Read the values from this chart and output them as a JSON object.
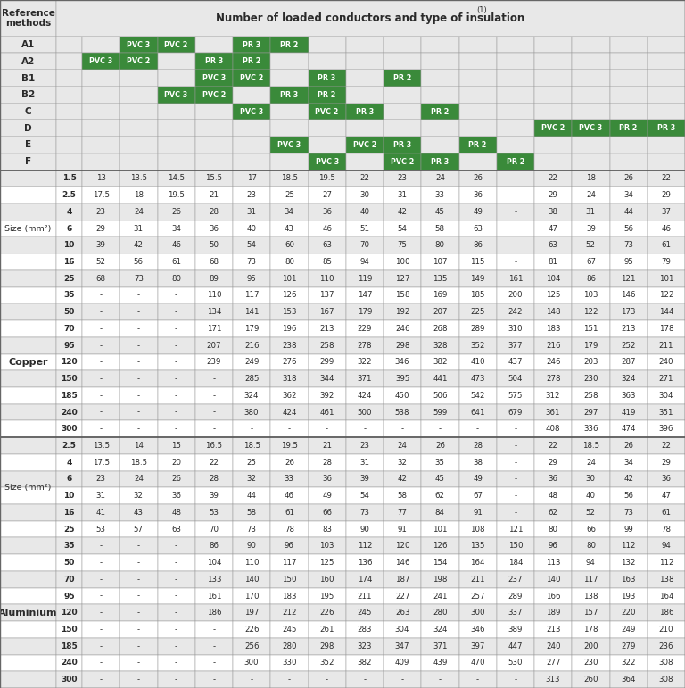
{
  "title": "Number of loaded conductors and type of insulation",
  "title_sup": "(1)",
  "green_color": "#3a8a3a",
  "light_gray": "#e8e8e8",
  "mid_gray": "#d0d0d0",
  "white": "#ffffff",
  "dark": "#2a2a2a",
  "header_rows": [
    {
      "label": "A1",
      "cells": [
        "",
        "PVC 3",
        "PVC 2",
        "",
        "PR 3",
        "PR 2",
        "",
        "",
        "",
        "",
        "",
        "",
        "",
        "",
        "",
        ""
      ]
    },
    {
      "label": "A2",
      "cells": [
        "PVC 3",
        "PVC 2",
        "",
        "PR 3",
        "PR 2",
        "",
        "",
        "",
        "",
        "",
        "",
        "",
        "",
        "",
        "",
        ""
      ]
    },
    {
      "label": "B1",
      "cells": [
        "",
        "",
        "",
        "PVC 3",
        "PVC 2",
        "",
        "PR 3",
        "",
        "PR 2",
        "",
        "",
        "",
        "",
        "",
        "",
        ""
      ]
    },
    {
      "label": "B2",
      "cells": [
        "",
        "",
        "PVC 3",
        "PVC 2",
        "",
        "PR 3",
        "PR 2",
        "",
        "",
        "",
        "",
        "",
        "",
        "",
        "",
        ""
      ]
    },
    {
      "label": "C",
      "cells": [
        "",
        "",
        "",
        "",
        "PVC 3",
        "",
        "PVC 2",
        "PR 3",
        "",
        "PR 2",
        "",
        "",
        "",
        "",
        "",
        ""
      ]
    },
    {
      "label": "D",
      "cells": [
        "",
        "",
        "",
        "",
        "",
        "",
        "",
        "",
        "",
        "",
        "",
        "",
        "PVC 2",
        "PVC 3",
        "PR 2",
        "PR 3"
      ]
    },
    {
      "label": "E",
      "cells": [
        "",
        "",
        "",
        "",
        "",
        "PVC 3",
        "",
        "PVC 2",
        "PR 3",
        "",
        "PR 2",
        "",
        "",
        "",
        "",
        ""
      ]
    },
    {
      "label": "F",
      "cells": [
        "",
        "",
        "",
        "",
        "",
        "",
        "PVC 3",
        "",
        "PVC 2",
        "PR 3",
        "",
        "PR 2",
        "",
        "",
        "",
        ""
      ]
    }
  ],
  "copper_rows": [
    {
      "size": "1.5",
      "vals": [
        "13",
        "13.5",
        "14.5",
        "15.5",
        "17",
        "18.5",
        "19.5",
        "22",
        "23",
        "24",
        "26",
        "-",
        "22",
        "18",
        "26",
        "22"
      ]
    },
    {
      "size": "2.5",
      "vals": [
        "17.5",
        "18",
        "19.5",
        "21",
        "23",
        "25",
        "27",
        "30",
        "31",
        "33",
        "36",
        "-",
        "29",
        "24",
        "34",
        "29"
      ]
    },
    {
      "size": "4",
      "vals": [
        "23",
        "24",
        "26",
        "28",
        "31",
        "34",
        "36",
        "40",
        "42",
        "45",
        "49",
        "-",
        "38",
        "31",
        "44",
        "37"
      ]
    },
    {
      "size": "6",
      "vals": [
        "29",
        "31",
        "34",
        "36",
        "40",
        "43",
        "46",
        "51",
        "54",
        "58",
        "63",
        "-",
        "47",
        "39",
        "56",
        "46"
      ]
    },
    {
      "size": "10",
      "vals": [
        "39",
        "42",
        "46",
        "50",
        "54",
        "60",
        "63",
        "70",
        "75",
        "80",
        "86",
        "-",
        "63",
        "52",
        "73",
        "61"
      ]
    },
    {
      "size": "16",
      "vals": [
        "52",
        "56",
        "61",
        "68",
        "73",
        "80",
        "85",
        "94",
        "100",
        "107",
        "115",
        "-",
        "81",
        "67",
        "95",
        "79"
      ]
    },
    {
      "size": "25",
      "vals": [
        "68",
        "73",
        "80",
        "89",
        "95",
        "101",
        "110",
        "119",
        "127",
        "135",
        "149",
        "161",
        "104",
        "86",
        "121",
        "101"
      ]
    },
    {
      "size": "35",
      "vals": [
        "-",
        "-",
        "-",
        "110",
        "117",
        "126",
        "137",
        "147",
        "158",
        "169",
        "185",
        "200",
        "125",
        "103",
        "146",
        "122"
      ]
    },
    {
      "size": "50",
      "vals": [
        "-",
        "-",
        "-",
        "134",
        "141",
        "153",
        "167",
        "179",
        "192",
        "207",
        "225",
        "242",
        "148",
        "122",
        "173",
        "144"
      ]
    },
    {
      "size": "70",
      "vals": [
        "-",
        "-",
        "-",
        "171",
        "179",
        "196",
        "213",
        "229",
        "246",
        "268",
        "289",
        "310",
        "183",
        "151",
        "213",
        "178"
      ]
    },
    {
      "size": "95",
      "vals": [
        "-",
        "-",
        "-",
        "207",
        "216",
        "238",
        "258",
        "278",
        "298",
        "328",
        "352",
        "377",
        "216",
        "179",
        "252",
        "211"
      ]
    },
    {
      "size": "120",
      "vals": [
        "-",
        "-",
        "-",
        "239",
        "249",
        "276",
        "299",
        "322",
        "346",
        "382",
        "410",
        "437",
        "246",
        "203",
        "287",
        "240"
      ]
    },
    {
      "size": "150",
      "vals": [
        "-",
        "-",
        "-",
        "-",
        "285",
        "318",
        "344",
        "371",
        "395",
        "441",
        "473",
        "504",
        "278",
        "230",
        "324",
        "271"
      ]
    },
    {
      "size": "185",
      "vals": [
        "-",
        "-",
        "-",
        "-",
        "324",
        "362",
        "392",
        "424",
        "450",
        "506",
        "542",
        "575",
        "312",
        "258",
        "363",
        "304"
      ]
    },
    {
      "size": "240",
      "vals": [
        "-",
        "-",
        "-",
        "-",
        "380",
        "424",
        "461",
        "500",
        "538",
        "599",
        "641",
        "679",
        "361",
        "297",
        "419",
        "351"
      ]
    },
    {
      "size": "300",
      "vals": [
        "-",
        "-",
        "-",
        "-",
        "-",
        "-",
        "-",
        "-",
        "-",
        "-",
        "-",
        "-",
        "408",
        "336",
        "474",
        "396"
      ]
    }
  ],
  "aluminium_rows": [
    {
      "size": "2.5",
      "vals": [
        "13.5",
        "14",
        "15",
        "16.5",
        "18.5",
        "19.5",
        "21",
        "23",
        "24",
        "26",
        "28",
        "-",
        "22",
        "18.5",
        "26",
        "22"
      ]
    },
    {
      "size": "4",
      "vals": [
        "17.5",
        "18.5",
        "20",
        "22",
        "25",
        "26",
        "28",
        "31",
        "32",
        "35",
        "38",
        "-",
        "29",
        "24",
        "34",
        "29"
      ]
    },
    {
      "size": "6",
      "vals": [
        "23",
        "24",
        "26",
        "28",
        "32",
        "33",
        "36",
        "39",
        "42",
        "45",
        "49",
        "-",
        "36",
        "30",
        "42",
        "36"
      ]
    },
    {
      "size": "10",
      "vals": [
        "31",
        "32",
        "36",
        "39",
        "44",
        "46",
        "49",
        "54",
        "58",
        "62",
        "67",
        "-",
        "48",
        "40",
        "56",
        "47"
      ]
    },
    {
      "size": "16",
      "vals": [
        "41",
        "43",
        "48",
        "53",
        "58",
        "61",
        "66",
        "73",
        "77",
        "84",
        "91",
        "-",
        "62",
        "52",
        "73",
        "61"
      ]
    },
    {
      "size": "25",
      "vals": [
        "53",
        "57",
        "63",
        "70",
        "73",
        "78",
        "83",
        "90",
        "91",
        "101",
        "108",
        "121",
        "80",
        "66",
        "99",
        "78"
      ]
    },
    {
      "size": "35",
      "vals": [
        "-",
        "-",
        "-",
        "86",
        "90",
        "96",
        "103",
        "112",
        "120",
        "126",
        "135",
        "150",
        "96",
        "80",
        "112",
        "94"
      ]
    },
    {
      "size": "50",
      "vals": [
        "-",
        "-",
        "-",
        "104",
        "110",
        "117",
        "125",
        "136",
        "146",
        "154",
        "164",
        "184",
        "113",
        "94",
        "132",
        "112"
      ]
    },
    {
      "size": "70",
      "vals": [
        "-",
        "-",
        "-",
        "133",
        "140",
        "150",
        "160",
        "174",
        "187",
        "198",
        "211",
        "237",
        "140",
        "117",
        "163",
        "138"
      ]
    },
    {
      "size": "95",
      "vals": [
        "-",
        "-",
        "-",
        "161",
        "170",
        "183",
        "195",
        "211",
        "227",
        "241",
        "257",
        "289",
        "166",
        "138",
        "193",
        "164"
      ]
    },
    {
      "size": "120",
      "vals": [
        "-",
        "-",
        "-",
        "186",
        "197",
        "212",
        "226",
        "245",
        "263",
        "280",
        "300",
        "337",
        "189",
        "157",
        "220",
        "186"
      ]
    },
    {
      "size": "150",
      "vals": [
        "-",
        "-",
        "-",
        "-",
        "226",
        "245",
        "261",
        "283",
        "304",
        "324",
        "346",
        "389",
        "213",
        "178",
        "249",
        "210"
      ]
    },
    {
      "size": "185",
      "vals": [
        "-",
        "-",
        "-",
        "-",
        "256",
        "280",
        "298",
        "323",
        "347",
        "371",
        "397",
        "447",
        "240",
        "200",
        "279",
        "236"
      ]
    },
    {
      "size": "240",
      "vals": [
        "-",
        "-",
        "-",
        "-",
        "300",
        "330",
        "352",
        "382",
        "409",
        "439",
        "470",
        "530",
        "277",
        "230",
        "322",
        "308"
      ]
    },
    {
      "size": "300",
      "vals": [
        "-",
        "-",
        "-",
        "-",
        "-",
        "-",
        "-",
        "-",
        "-",
        "-",
        "-",
        "-",
        "313",
        "260",
        "364",
        "308"
      ]
    }
  ]
}
